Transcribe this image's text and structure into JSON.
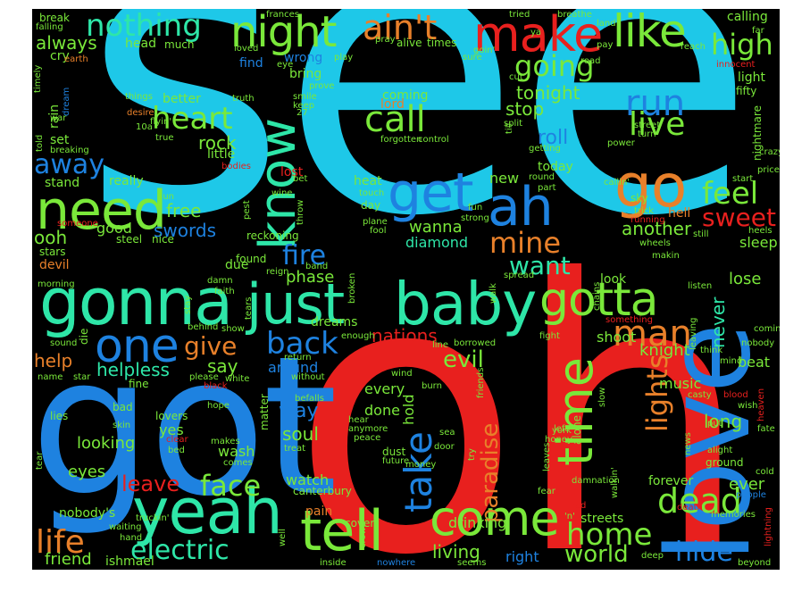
{
  "words": [
    {
      "text": "see",
      "color": "#1ec8e8"
    },
    {
      "text": "oh",
      "color": "#e8201e"
    },
    {
      "text": "got",
      "color": "#1e82e0"
    },
    {
      "text": "love",
      "color": "#1e82e0"
    },
    {
      "text": "gonna",
      "color": "#2ee6a8"
    },
    {
      "text": "just",
      "color": "#2ee6a8"
    },
    {
      "text": "baby",
      "color": "#2ee6a8"
    },
    {
      "text": "yeah",
      "color": "#2ee6a8"
    },
    {
      "text": "tell",
      "color": "#7ae83a"
    },
    {
      "text": "come",
      "color": "#7ae83a"
    },
    {
      "text": "time",
      "color": "#7ae83a"
    },
    {
      "text": "need",
      "color": "#7ae83a"
    },
    {
      "text": "know",
      "color": "#2ee6a8"
    },
    {
      "text": "get",
      "color": "#1e82e0"
    },
    {
      "text": "ah",
      "color": "#1e82e0"
    },
    {
      "text": "go",
      "color": "#e8802a"
    },
    {
      "text": "make",
      "color": "#e8201e"
    },
    {
      "text": "like",
      "color": "#7ae83a"
    },
    {
      "text": "night",
      "color": "#7ae83a"
    },
    {
      "text": "ain't",
      "color": "#e8802a"
    },
    {
      "text": "nothing",
      "color": "#2ee6a8"
    },
    {
      "text": "high",
      "color": "#7ae83a"
    },
    {
      "text": "gotta",
      "color": "#7ae83a"
    },
    {
      "text": "one",
      "color": "#1e82e0"
    },
    {
      "text": "dead",
      "color": "#7ae83a"
    },
    {
      "text": "man",
      "color": "#e8802a"
    },
    {
      "text": "home",
      "color": "#7ae83a"
    },
    {
      "text": "life",
      "color": "#e8802a"
    },
    {
      "text": "electric",
      "color": "#2ee6a8"
    },
    {
      "text": "face",
      "color": "#7ae83a"
    },
    {
      "text": "heart",
      "color": "#7ae83a"
    },
    {
      "text": "call",
      "color": "#7ae83a"
    },
    {
      "text": "run",
      "color": "#1e82e0"
    },
    {
      "text": "live",
      "color": "#7ae83a"
    },
    {
      "text": "away",
      "color": "#1e82e0"
    },
    {
      "text": "fire",
      "color": "#1e82e0"
    },
    {
      "text": "mine",
      "color": "#e8802a"
    },
    {
      "text": "want",
      "color": "#2ee6a8"
    },
    {
      "text": "back",
      "color": "#1e82e0"
    },
    {
      "text": "give",
      "color": "#e8802a"
    },
    {
      "text": "feel",
      "color": "#7ae83a"
    },
    {
      "text": "sweet",
      "color": "#e8201e"
    },
    {
      "text": "world",
      "color": "#7ae83a"
    },
    {
      "text": "hide",
      "color": "#1e82e0"
    },
    {
      "text": "going",
      "color": "#7ae83a"
    },
    {
      "text": "always",
      "color": "#7ae83a"
    },
    {
      "text": "lights",
      "color": "#e8802a"
    },
    {
      "text": "take",
      "color": "#1e82e0"
    },
    {
      "text": "paradise",
      "color": "#e8802a"
    },
    {
      "text": "leave",
      "color": "#e8201e"
    },
    {
      "text": "helpless",
      "color": "#2ee6a8"
    },
    {
      "text": "nations",
      "color": "#e8201e"
    },
    {
      "text": "evil",
      "color": "#7ae83a"
    },
    {
      "text": "tonight",
      "color": "#7ae83a"
    },
    {
      "text": "stop",
      "color": "#7ae83a"
    },
    {
      "text": "roll",
      "color": "#1e82e0"
    },
    {
      "text": "rock",
      "color": "#7ae83a"
    },
    {
      "text": "free",
      "color": "#7ae83a"
    },
    {
      "text": "swords",
      "color": "#1e82e0"
    },
    {
      "text": "ooh",
      "color": "#7ae83a"
    },
    {
      "text": "good",
      "color": "#7ae83a"
    },
    {
      "text": "another",
      "color": "#7ae83a"
    },
    {
      "text": "sleep",
      "color": "#7ae83a"
    },
    {
      "text": "lose",
      "color": "#7ae83a"
    },
    {
      "text": "never",
      "color": "#2ee6a8"
    },
    {
      "text": "phase",
      "color": "#7ae83a"
    },
    {
      "text": "wanna",
      "color": "#7ae83a"
    },
    {
      "text": "diamond",
      "color": "#2ee6a8"
    },
    {
      "text": "knight",
      "color": "#7ae83a"
    },
    {
      "text": "beat",
      "color": "#7ae83a"
    },
    {
      "text": "music",
      "color": "#7ae83a"
    },
    {
      "text": "long",
      "color": "#7ae83a"
    },
    {
      "text": "ever",
      "color": "#7ae83a"
    },
    {
      "text": "forever",
      "color": "#7ae83a"
    },
    {
      "text": "say",
      "color": "#7ae83a"
    },
    {
      "text": "help",
      "color": "#e8802a"
    },
    {
      "text": "way",
      "color": "#1e82e0"
    },
    {
      "text": "soul",
      "color": "#7ae83a"
    },
    {
      "text": "looking",
      "color": "#7ae83a"
    },
    {
      "text": "yes",
      "color": "#7ae83a"
    },
    {
      "text": "eyes",
      "color": "#7ae83a"
    },
    {
      "text": "wash",
      "color": "#7ae83a"
    },
    {
      "text": "watch",
      "color": "#7ae83a"
    },
    {
      "text": "pain",
      "color": "#e8802a"
    },
    {
      "text": "living",
      "color": "#7ae83a"
    },
    {
      "text": "right",
      "color": "#1e82e0"
    },
    {
      "text": "friend",
      "color": "#7ae83a"
    },
    {
      "text": "ishmael",
      "color": "#7ae83a"
    },
    {
      "text": "nobody's",
      "color": "#7ae83a"
    },
    {
      "text": "drinking",
      "color": "#7ae83a"
    },
    {
      "text": "shoot",
      "color": "#7ae83a"
    },
    {
      "text": "around",
      "color": "#1e82e0"
    },
    {
      "text": "every",
      "color": "#7ae83a"
    },
    {
      "text": "done",
      "color": "#7ae83a"
    },
    {
      "text": "hold",
      "color": "#7ae83a"
    },
    {
      "text": "dreams",
      "color": "#7ae83a"
    },
    {
      "text": "today",
      "color": "#7ae83a"
    },
    {
      "text": "new",
      "color": "#7ae83a"
    },
    {
      "text": "heat",
      "color": "#7ae83a"
    },
    {
      "text": "little",
      "color": "#7ae83a"
    },
    {
      "text": "better",
      "color": "#7ae83a"
    },
    {
      "text": "coming",
      "color": "#7ae83a"
    },
    {
      "text": "lord",
      "color": "#e8802a"
    },
    {
      "text": "really",
      "color": "#7ae83a"
    },
    {
      "text": "stand",
      "color": "#7ae83a"
    },
    {
      "text": "set",
      "color": "#7ae83a"
    },
    {
      "text": "rain",
      "color": "#7ae83a"
    },
    {
      "text": "cry",
      "color": "#7ae83a"
    },
    {
      "text": "find",
      "color": "#1e82e0"
    },
    {
      "text": "wrong",
      "color": "#1e82e0"
    },
    {
      "text": "bring",
      "color": "#7ae83a"
    },
    {
      "text": "head",
      "color": "#7ae83a"
    },
    {
      "text": "calling",
      "color": "#7ae83a"
    },
    {
      "text": "light",
      "color": "#7ae83a"
    },
    {
      "text": "alive",
      "color": "#7ae83a"
    },
    {
      "text": "times",
      "color": "#7ae83a"
    },
    {
      "text": "fifty",
      "color": "#7ae83a"
    },
    {
      "text": "stars",
      "color": "#7ae83a"
    },
    {
      "text": "devil",
      "color": "#e8802a"
    },
    {
      "text": "due",
      "color": "#7ae83a"
    },
    {
      "text": "found",
      "color": "#7ae83a"
    },
    {
      "text": "reckoning",
      "color": "#7ae83a"
    },
    {
      "text": "look",
      "color": "#7ae83a"
    },
    {
      "text": "hell",
      "color": "#e8802a"
    },
    {
      "text": "lost",
      "color": "#e8201e"
    },
    {
      "text": "nice",
      "color": "#7ae83a"
    },
    {
      "text": "steel",
      "color": "#7ae83a"
    },
    {
      "text": "canterbury",
      "color": "#7ae83a"
    },
    {
      "text": "streets",
      "color": "#7ae83a"
    },
    {
      "text": "cover",
      "color": "#7ae83a"
    },
    {
      "text": "bad",
      "color": "#7ae83a"
    },
    {
      "text": "lies",
      "color": "#7ae83a"
    },
    {
      "text": "lovers",
      "color": "#7ae83a"
    },
    {
      "text": "fine",
      "color": "#7ae83a"
    },
    {
      "text": "much",
      "color": "#7ae83a"
    },
    {
      "text": "break",
      "color": "#7ae83a"
    },
    {
      "text": "falling",
      "color": "#7ae83a"
    },
    {
      "text": "earth",
      "color": "#e8802a"
    },
    {
      "text": "play",
      "color": "#7ae83a"
    },
    {
      "text": "prove",
      "color": "#7ae83a"
    },
    {
      "text": "smile",
      "color": "#7ae83a"
    },
    {
      "text": "keep",
      "color": "#7ae83a"
    },
    {
      "text": "truth",
      "color": "#7ae83a"
    },
    {
      "text": "desire",
      "color": "#e8802a"
    },
    {
      "text": "things",
      "color": "#7ae83a"
    },
    {
      "text": "flyin'",
      "color": "#7ae83a"
    },
    {
      "text": "true",
      "color": "#7ae83a"
    },
    {
      "text": "control",
      "color": "#7ae83a"
    },
    {
      "text": "forgotten",
      "color": "#7ae83a"
    },
    {
      "text": "getting",
      "color": "#7ae83a"
    },
    {
      "text": "street",
      "color": "#7ae83a"
    },
    {
      "text": "turn",
      "color": "#7ae83a"
    },
    {
      "text": "power",
      "color": "#7ae83a"
    },
    {
      "text": "nightmare",
      "color": "#7ae83a"
    },
    {
      "text": "innocent",
      "color": "#e8201e"
    },
    {
      "text": "start",
      "color": "#7ae83a"
    },
    {
      "text": "price",
      "color": "#7ae83a"
    },
    {
      "text": "reach",
      "color": "#7ae83a"
    },
    {
      "text": "road",
      "color": "#7ae83a"
    },
    {
      "text": "pay",
      "color": "#7ae83a"
    },
    {
      "text": "far",
      "color": "#7ae83a"
    },
    {
      "text": "land",
      "color": "#7ae83a"
    },
    {
      "text": "breathe",
      "color": "#7ae83a"
    },
    {
      "text": "tried",
      "color": "#7ae83a"
    },
    {
      "text": "pray",
      "color": "#7ae83a"
    },
    {
      "text": "sure",
      "color": "#7ae83a"
    },
    {
      "text": "cut",
      "color": "#7ae83a"
    },
    {
      "text": "split",
      "color": "#7ae83a"
    },
    {
      "text": "fun",
      "color": "#7ae83a"
    },
    {
      "text": "plane",
      "color": "#7ae83a"
    },
    {
      "text": "fool",
      "color": "#7ae83a"
    },
    {
      "text": "day",
      "color": "#7ae83a"
    },
    {
      "text": "touch",
      "color": "#7ae83a"
    },
    {
      "text": "strong",
      "color": "#7ae83a"
    },
    {
      "text": "trick",
      "color": "#7ae83a"
    },
    {
      "text": "running",
      "color": "#e8201e"
    },
    {
      "text": "wheels",
      "color": "#7ae83a"
    },
    {
      "text": "still",
      "color": "#7ae83a"
    },
    {
      "text": "heels",
      "color": "#7ae83a"
    },
    {
      "text": "makin",
      "color": "#7ae83a"
    },
    {
      "text": "callin'",
      "color": "#7ae83a"
    },
    {
      "text": "sky",
      "color": "#7ae83a"
    },
    {
      "text": "wine",
      "color": "#7ae83a"
    },
    {
      "text": "throw",
      "color": "#7ae83a"
    },
    {
      "text": "gun",
      "color": "#7ae83a"
    },
    {
      "text": "faith",
      "color": "#7ae83a"
    },
    {
      "text": "damn",
      "color": "#7ae83a"
    },
    {
      "text": "morning",
      "color": "#7ae83a"
    },
    {
      "text": "band",
      "color": "#7ae83a"
    },
    {
      "text": "reign",
      "color": "#7ae83a"
    },
    {
      "text": "broken",
      "color": "#7ae83a"
    },
    {
      "text": "walk",
      "color": "#7ae83a"
    },
    {
      "text": "spread",
      "color": "#7ae83a"
    },
    {
      "text": "listen",
      "color": "#7ae83a"
    },
    {
      "text": "leaving",
      "color": "#7ae83a"
    },
    {
      "text": "comin'",
      "color": "#7ae83a"
    },
    {
      "text": "nobody",
      "color": "#7ae83a"
    },
    {
      "text": "mind",
      "color": "#7ae83a"
    },
    {
      "text": "think",
      "color": "#7ae83a"
    },
    {
      "text": "something",
      "color": "#e8201e"
    },
    {
      "text": "fight",
      "color": "#7ae83a"
    },
    {
      "text": "show",
      "color": "#7ae83a"
    },
    {
      "text": "behind",
      "color": "#7ae83a"
    },
    {
      "text": "die",
      "color": "#7ae83a"
    },
    {
      "text": "sound",
      "color": "#7ae83a"
    },
    {
      "text": "name",
      "color": "#7ae83a"
    },
    {
      "text": "star",
      "color": "#7ae83a"
    },
    {
      "text": "please",
      "color": "#7ae83a"
    },
    {
      "text": "white",
      "color": "#7ae83a"
    },
    {
      "text": "black",
      "color": "#e8201e"
    },
    {
      "text": "without",
      "color": "#7ae83a"
    },
    {
      "text": "return",
      "color": "#7ae83a"
    },
    {
      "text": "matter",
      "color": "#7ae83a"
    },
    {
      "text": "tears",
      "color": "#7ae83a"
    },
    {
      "text": "stay",
      "color": "#7ae83a"
    },
    {
      "text": "enough",
      "color": "#7ae83a"
    },
    {
      "text": "line",
      "color": "#7ae83a"
    },
    {
      "text": "borrowed",
      "color": "#7ae83a"
    },
    {
      "text": "wind",
      "color": "#7ae83a"
    },
    {
      "text": "burn",
      "color": "#7ae83a"
    },
    {
      "text": "sea",
      "color": "#7ae83a"
    },
    {
      "text": "door",
      "color": "#7ae83a"
    },
    {
      "text": "dust",
      "color": "#7ae83a"
    },
    {
      "text": "future",
      "color": "#7ae83a"
    },
    {
      "text": "money",
      "color": "#7ae83a"
    },
    {
      "text": "hear",
      "color": "#7ae83a"
    },
    {
      "text": "anymore",
      "color": "#7ae83a"
    },
    {
      "text": "peace",
      "color": "#7ae83a"
    },
    {
      "text": "befalls",
      "color": "#7ae83a"
    },
    {
      "text": "treat",
      "color": "#7ae83a"
    },
    {
      "text": "comes",
      "color": "#7ae83a"
    },
    {
      "text": "makes",
      "color": "#7ae83a"
    },
    {
      "text": "clear",
      "color": "#e8201e"
    },
    {
      "text": "bed",
      "color": "#7ae83a"
    },
    {
      "text": "truckin'",
      "color": "#7ae83a"
    },
    {
      "text": "waiting",
      "color": "#7ae83a"
    },
    {
      "text": "hand",
      "color": "#7ae83a"
    },
    {
      "text": "skin",
      "color": "#7ae83a"
    },
    {
      "text": "tear",
      "color": "#7ae83a"
    },
    {
      "text": "hope",
      "color": "#7ae83a"
    },
    {
      "text": "try",
      "color": "#7ae83a"
    },
    {
      "text": "friends",
      "color": "#7ae83a"
    },
    {
      "text": "york",
      "color": "#7ae83a"
    },
    {
      "text": "left",
      "color": "#7ae83a"
    },
    {
      "text": "honey",
      "color": "#7ae83a"
    },
    {
      "text": "alone",
      "color": "#7ae83a"
    },
    {
      "text": "leaves",
      "color": "#7ae83a"
    },
    {
      "text": "slow",
      "color": "#7ae83a"
    },
    {
      "text": "damnation",
      "color": "#7ae83a"
    },
    {
      "text": "fear",
      "color": "#7ae83a"
    },
    {
      "text": "red",
      "color": "#e8201e"
    },
    {
      "text": "walkin'",
      "color": "#7ae83a"
    },
    {
      "text": "deep",
      "color": "#7ae83a"
    },
    {
      "text": "inside",
      "color": "#7ae83a"
    },
    {
      "text": "nowhere",
      "color": "#1e82e0"
    },
    {
      "text": "seems",
      "color": "#7ae83a"
    },
    {
      "text": "well",
      "color": "#7ae83a"
    },
    {
      "text": "crown",
      "color": "#7ae83a"
    },
    {
      "text": "'n'",
      "color": "#7ae83a"
    },
    {
      "text": "memories",
      "color": "#7ae83a"
    },
    {
      "text": "death",
      "color": "#e8201e"
    },
    {
      "text": "ground",
      "color": "#7ae83a"
    },
    {
      "text": "alight",
      "color": "#7ae83a"
    },
    {
      "text": "heaven",
      "color": "#e8201e"
    },
    {
      "text": "wish",
      "color": "#7ae83a"
    },
    {
      "text": "blood",
      "color": "#e8201e"
    },
    {
      "text": "put",
      "color": "#7ae83a"
    },
    {
      "text": "fate",
      "color": "#7ae83a"
    },
    {
      "text": "cold",
      "color": "#7ae83a"
    },
    {
      "text": "people",
      "color": "#1e82e0"
    },
    {
      "text": "lightning",
      "color": "#e8201e"
    },
    {
      "text": "beyond",
      "color": "#7ae83a"
    },
    {
      "text": "casty",
      "color": "#7ae83a"
    },
    {
      "text": "news",
      "color": "#7ae83a"
    },
    {
      "text": "crazy",
      "color": "#7ae83a"
    },
    {
      "text": "war",
      "color": "#7ae83a"
    },
    {
      "text": "told",
      "color": "#7ae83a"
    },
    {
      "text": "breaking",
      "color": "#7ae83a"
    },
    {
      "text": "dream",
      "color": "#1e82e0"
    },
    {
      "text": "bodies",
      "color": "#e8201e"
    },
    {
      "text": "10a",
      "color": "#7ae83a"
    },
    {
      "text": "timely",
      "color": "#7ae83a"
    },
    {
      "text": "loved",
      "color": "#7ae83a"
    },
    {
      "text": "someone",
      "color": "#e8201e"
    },
    {
      "text": "pest",
      "color": "#7ae83a"
    },
    {
      "text": "bet",
      "color": "#7ae83a"
    },
    {
      "text": "round",
      "color": "#7ae83a"
    },
    {
      "text": "part",
      "color": "#7ae83a"
    },
    {
      "text": "till",
      "color": "#7ae83a"
    },
    {
      "text": "goin'",
      "color": "#7ae83a"
    },
    {
      "text": "frances",
      "color": "#7ae83a"
    },
    {
      "text": "eye",
      "color": "#7ae83a"
    },
    {
      "text": "ya",
      "color": "#7ae83a"
    },
    {
      "text": "27",
      "color": "#7ae83a"
    },
    {
      "text": "chains",
      "color": "#7ae83a"
    }
  ]
}
